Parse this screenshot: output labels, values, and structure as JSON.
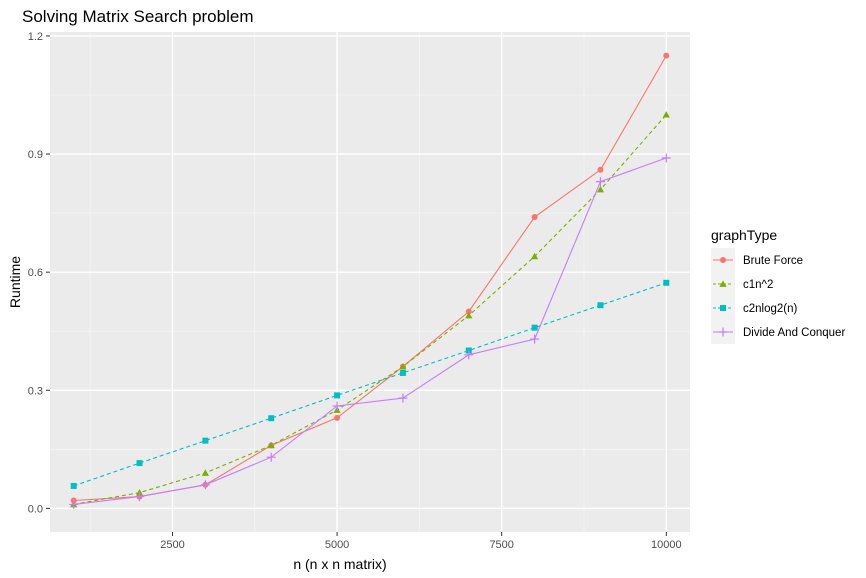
{
  "chart_data": {
    "type": "line",
    "title": "Solving Matrix Search problem",
    "xlabel": "n (n x n matrix)",
    "ylabel": "Runtime",
    "xlim": [
      640,
      10360
    ],
    "ylim": [
      -0.06,
      1.21
    ],
    "x_ticks": [
      2500,
      5000,
      7500,
      10000
    ],
    "x_tick_labels": [
      "2500",
      "5000",
      "7500",
      "10000"
    ],
    "y_ticks": [
      0.0,
      0.3,
      0.6,
      0.9,
      1.2
    ],
    "y_tick_labels": [
      "0.0",
      "0.3",
      "0.6",
      "0.9",
      "1.2"
    ],
    "grid": true,
    "background": "#ebebeb",
    "legend": {
      "title": "graphType",
      "position": "right"
    },
    "x": [
      1000,
      2000,
      3000,
      4000,
      5000,
      6000,
      7000,
      8000,
      9000,
      10000
    ],
    "series": [
      {
        "name": "Brute Force",
        "color": "#f8766d",
        "shape": "circle",
        "dash": "solid",
        "values": [
          0.02,
          0.03,
          0.06,
          0.16,
          0.23,
          0.36,
          0.5,
          0.74,
          0.86,
          1.15
        ]
      },
      {
        "name": "c1n^2",
        "color": "#7cae00",
        "shape": "triangle",
        "dash": "dashed",
        "values": [
          0.01,
          0.04,
          0.09,
          0.16,
          0.25,
          0.36,
          0.49,
          0.64,
          0.81,
          1.0
        ]
      },
      {
        "name": "c2nlog2(n)",
        "color": "#00bfc4",
        "shape": "square",
        "dash": "dashed",
        "values": [
          0.057,
          0.115,
          0.172,
          0.229,
          0.287,
          0.344,
          0.401,
          0.459,
          0.516,
          0.573
        ]
      },
      {
        "name": "Divide And Conquer",
        "color": "#c77cff",
        "shape": "plus",
        "dash": "solid",
        "values": [
          0.01,
          0.03,
          0.06,
          0.13,
          0.26,
          0.28,
          0.39,
          0.43,
          0.83,
          0.89
        ]
      }
    ]
  }
}
